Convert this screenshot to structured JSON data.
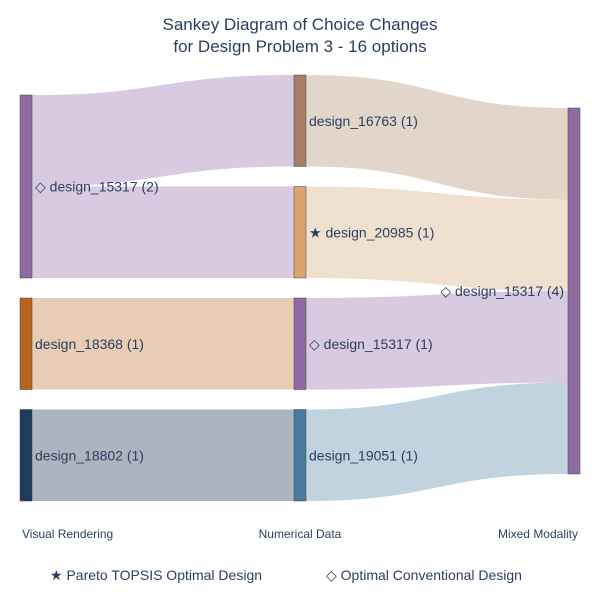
{
  "chart_data": {
    "type": "sankey",
    "title_lines": [
      "Sankey Diagram of Choice Changes",
      "for Design Problem 3 - 16 options"
    ],
    "stages": [
      "Visual Rendering",
      "Numerical Data",
      "Mixed Modality"
    ],
    "nodes": [
      {
        "id": "v_15317",
        "stage": 0,
        "label": "◇ design_15317 (2)",
        "value": 2,
        "color": "#8e6ba0"
      },
      {
        "id": "v_18368",
        "stage": 0,
        "label": "design_18368 (1)",
        "value": 1,
        "color": "#b5651d"
      },
      {
        "id": "v_18802",
        "stage": 0,
        "label": "design_18802 (1)",
        "value": 1,
        "color": "#1f3a5f"
      },
      {
        "id": "n_16763",
        "stage": 1,
        "label": "design_16763 (1)",
        "value": 1,
        "color": "#a67f64"
      },
      {
        "id": "n_20985",
        "stage": 1,
        "label": "★ design_20985 (1)",
        "value": 1,
        "color": "#d9a36e"
      },
      {
        "id": "n_15317",
        "stage": 1,
        "label": "◇ design_15317 (1)",
        "value": 1,
        "color": "#8e6ba0"
      },
      {
        "id": "n_19051",
        "stage": 1,
        "label": "design_19051 (1)",
        "value": 1,
        "color": "#4a7a9b"
      },
      {
        "id": "m_15317",
        "stage": 2,
        "label": "◇ design_15317 (4)",
        "value": 4,
        "color": "#8e6ba0"
      }
    ],
    "links": [
      {
        "source": "v_15317",
        "target": "n_16763",
        "value": 1,
        "color": "#d8cae0"
      },
      {
        "source": "v_15317",
        "target": "n_20985",
        "value": 1,
        "color": "#d8cae0"
      },
      {
        "source": "v_18368",
        "target": "n_15317",
        "value": 1,
        "color": "#e8ccb3"
      },
      {
        "source": "v_18802",
        "target": "n_19051",
        "value": 1,
        "color": "#adb4c0"
      },
      {
        "source": "n_16763",
        "target": "m_15317",
        "value": 1,
        "color": "#e2d5ca"
      },
      {
        "source": "n_20985",
        "target": "m_15317",
        "value": 1,
        "color": "#f0e0d0"
      },
      {
        "source": "n_15317",
        "target": "m_15317",
        "value": 1,
        "color": "#d8cae0"
      },
      {
        "source": "n_19051",
        "target": "m_15317",
        "value": 1,
        "color": "#c0d3df"
      }
    ],
    "legend": [
      {
        "label": "★ Pareto TOPSIS Optimal Design"
      },
      {
        "label": "◇ Optimal Conventional Design"
      }
    ]
  }
}
